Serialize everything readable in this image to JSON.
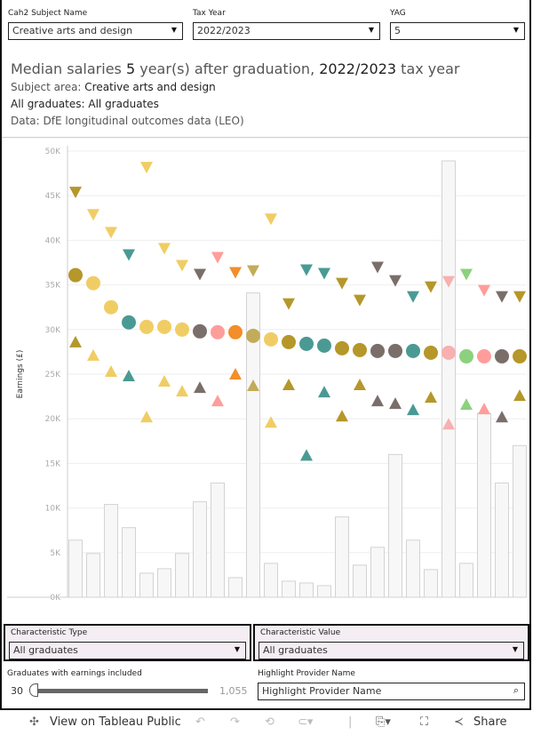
{
  "filters": {
    "subject": {
      "label": "Cah2 Subject Name",
      "value": "Creative arts and design"
    },
    "tax_year": {
      "label": "Tax Year",
      "value": "2022/2023"
    },
    "yag": {
      "label": "YAG",
      "value": "5"
    }
  },
  "heading": {
    "t1": "Median salaries ",
    "yag": "5",
    "t2": " year(s) after graduation, ",
    "year": "2022/2023",
    "t3": " tax year",
    "subject_prefix": "Subject area: ",
    "subject": "Creative arts and design",
    "grads_prefix": "All graduates: ",
    "grads": "All graduates",
    "source": "Data: DfE longitudinal outcomes data (LEO)"
  },
  "bottom": {
    "char_type": {
      "label": "Characteristic Type",
      "value": "All graduates"
    },
    "char_value": {
      "label": "Characteristic Value",
      "value": "All graduates"
    },
    "slider": {
      "label": "Graduates with earnings included",
      "min": "30",
      "max": "1,055",
      "value_fraction": 0
    },
    "highlight": {
      "label": "Highlight Provider Name",
      "placeholder": "Highlight Provider Name"
    }
  },
  "toolbar": {
    "view": "View on Tableau Public",
    "share": "Share"
  },
  "chart_data": {
    "type": "scatter",
    "ylabel": "Earnings (£)",
    "ylim": [
      0,
      50000
    ],
    "yticks": [
      "0K",
      "5K",
      "10K",
      "15K",
      "20K",
      "25K",
      "30K",
      "35K",
      "40K",
      "45K",
      "50K"
    ],
    "series_desc": [
      "median (circle)",
      "upper quartile (down triangle)",
      "lower quartile (up triangle)",
      "graduates count (bar)"
    ],
    "points": [
      {
        "median": 36100,
        "uq": 45500,
        "lq": 28500,
        "bar": 6400,
        "color": "#b5972a"
      },
      {
        "median": 35200,
        "uq": 43000,
        "lq": 27000,
        "bar": 4900,
        "color": "#f0cd64"
      },
      {
        "median": 32500,
        "uq": 41000,
        "lq": 25200,
        "bar": 10400,
        "color": "#f0cd64"
      },
      {
        "median": 30800,
        "uq": 38500,
        "lq": 24700,
        "bar": 7800,
        "color": "#4a9a93"
      },
      {
        "median": 30300,
        "uq": 48300,
        "lq": 20100,
        "bar": 2700,
        "color": "#f0cd64"
      },
      {
        "median": 30300,
        "uq": 39200,
        "lq": 24100,
        "bar": 3200,
        "color": "#f0cd64"
      },
      {
        "median": 30000,
        "uq": 37300,
        "lq": 23000,
        "bar": 4900,
        "color": "#f0cd64"
      },
      {
        "median": 29800,
        "uq": 36300,
        "lq": 23400,
        "bar": 10700,
        "color": "#7a6e6b"
      },
      {
        "median": 29700,
        "uq": 38200,
        "lq": 21900,
        "bar": 12800,
        "color": "#ff9d9a"
      },
      {
        "median": 29700,
        "uq": 36500,
        "lq": 24900,
        "bar": 2200,
        "color": "#f28e2b"
      },
      {
        "median": 29300,
        "uq": 36700,
        "lq": 23600,
        "bar": 34100,
        "color": "#c2ac5a"
      },
      {
        "median": 28900,
        "uq": 42500,
        "lq": 19500,
        "bar": 3800,
        "color": "#f0cd64"
      },
      {
        "median": 28600,
        "uq": 33000,
        "lq": 23700,
        "bar": 1800,
        "color": "#b5972a"
      },
      {
        "median": 28400,
        "uq": 36800,
        "lq": 15800,
        "bar": 1600,
        "color": "#4a9a93"
      },
      {
        "median": 28200,
        "uq": 36400,
        "lq": 22900,
        "bar": 1300,
        "color": "#4a9a93"
      },
      {
        "median": 27900,
        "uq": 35300,
        "lq": 20200,
        "bar": 9000,
        "color": "#b5972a"
      },
      {
        "median": 27700,
        "uq": 33400,
        "lq": 23700,
        "bar": 3600,
        "color": "#b5972a"
      },
      {
        "median": 27600,
        "uq": 37100,
        "lq": 21900,
        "bar": 5600,
        "color": "#7a6e6b"
      },
      {
        "median": 27600,
        "uq": 35600,
        "lq": 21600,
        "bar": 16000,
        "color": "#7a6e6b"
      },
      {
        "median": 27600,
        "uq": 33800,
        "lq": 20900,
        "bar": 6400,
        "color": "#4a9a93"
      },
      {
        "median": 27400,
        "uq": 34900,
        "lq": 22300,
        "bar": 3100,
        "color": "#b5972a"
      },
      {
        "median": 27400,
        "uq": 35500,
        "lq": 19300,
        "bar": 48900,
        "color": "#f8b0b0"
      },
      {
        "median": 27000,
        "uq": 36300,
        "lq": 21500,
        "bar": 3800,
        "color": "#8cd17d"
      },
      {
        "median": 27000,
        "uq": 34500,
        "lq": 21000,
        "bar": 20600,
        "color": "#ff9d9a"
      },
      {
        "median": 27000,
        "uq": 33800,
        "lq": 20100,
        "bar": 12800,
        "color": "#7a6e6b"
      },
      {
        "median": 27000,
        "uq": 33800,
        "lq": 22500,
        "bar": 17000,
        "color": "#b5972a"
      }
    ]
  }
}
